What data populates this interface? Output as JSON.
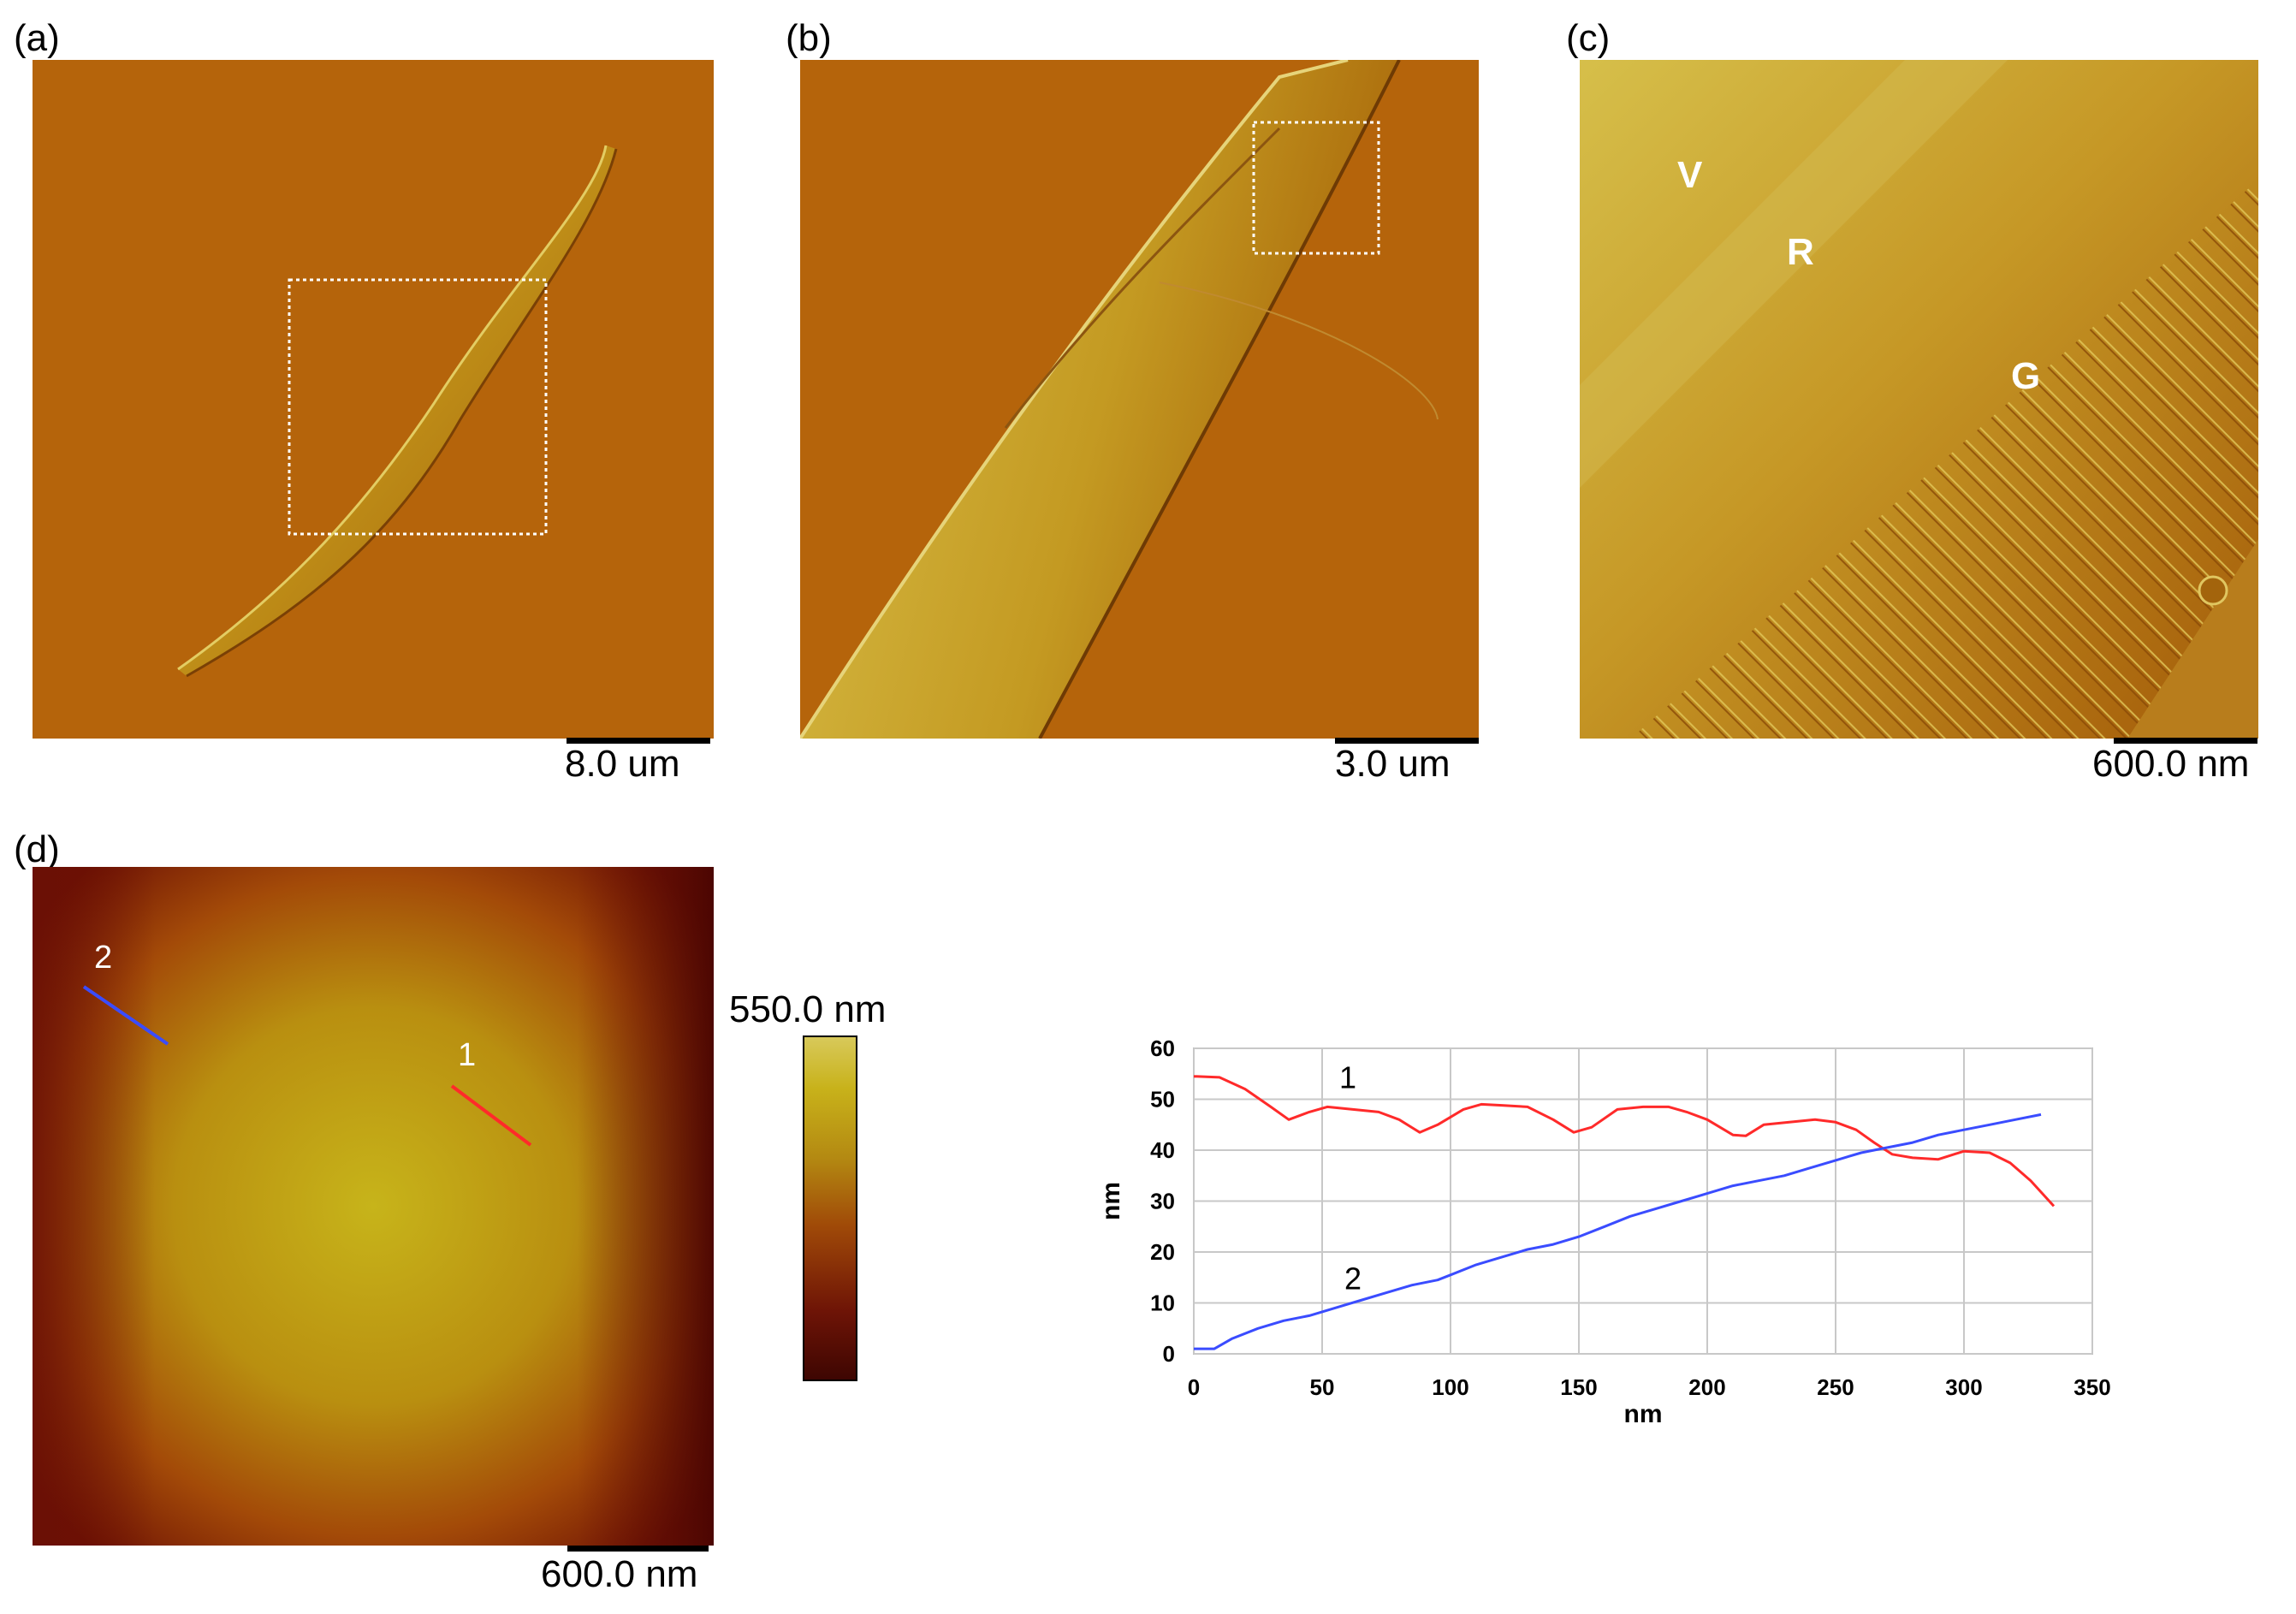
{
  "panels": {
    "a": {
      "label": "(a)",
      "scale": "8.0 um"
    },
    "b": {
      "label": "(b)",
      "scale": "3.0 um"
    },
    "c": {
      "label": "(c)",
      "scale": "600.0 nm",
      "regions": [
        "V",
        "R",
        "G"
      ]
    },
    "d": {
      "label": "(d)",
      "scale": "600.0 nm",
      "colorbar_max": "550.0 nm",
      "profile_lines": [
        "1",
        "2"
      ]
    }
  },
  "colors": {
    "background_afm": "#b5640b",
    "cell_light": "#c7a21e",
    "profile1": "#ff2a2a",
    "profile2": "#3a4cff"
  },
  "chart_data": {
    "type": "line",
    "title": "",
    "xlabel": "nm",
    "ylabel": "nm",
    "xlim": [
      0,
      350
    ],
    "ylim": [
      0,
      60
    ],
    "xticks": [
      0,
      50,
      100,
      150,
      200,
      250,
      300,
      350
    ],
    "yticks": [
      0,
      10,
      20,
      30,
      40,
      50,
      60
    ],
    "grid": true,
    "series": [
      {
        "name": "1",
        "color": "#ff2a2a",
        "x": [
          0,
          10,
          20,
          30,
          37,
          45,
          52,
          62,
          72,
          80,
          88,
          95,
          105,
          112,
          120,
          130,
          140,
          148,
          155,
          165,
          175,
          185,
          192,
          200,
          210,
          215,
          222,
          232,
          242,
          250,
          258,
          265,
          272,
          280,
          290,
          300,
          310,
          318,
          326,
          335
        ],
        "values": [
          54.5,
          54.3,
          52,
          48.5,
          46,
          47.5,
          48.5,
          48,
          47.5,
          46,
          43.5,
          45,
          48,
          49,
          48.8,
          48.5,
          46,
          43.5,
          44.5,
          48,
          48.5,
          48.5,
          47.5,
          46,
          43,
          42.8,
          45,
          45.5,
          46,
          45.5,
          44,
          41.5,
          39.2,
          38.5,
          38.2,
          39.8,
          39.5,
          37.5,
          34,
          29
        ]
      },
      {
        "name": "2",
        "color": "#3a4cff",
        "x": [
          0,
          8,
          15,
          25,
          35,
          45,
          55,
          65,
          75,
          85,
          95,
          100,
          110,
          120,
          130,
          140,
          150,
          160,
          170,
          180,
          190,
          200,
          210,
          220,
          230,
          240,
          250,
          260,
          270,
          280,
          290,
          300,
          310,
          320,
          330
        ],
        "values": [
          1,
          1,
          3,
          5,
          6.5,
          7.5,
          9,
          10.5,
          12,
          13.5,
          14.5,
          15.5,
          17.5,
          19,
          20.5,
          21.5,
          23,
          25,
          27,
          28.5,
          30,
          31.5,
          33,
          34,
          35,
          36.5,
          38,
          39.5,
          40.5,
          41.5,
          43,
          44,
          45,
          46,
          47
        ]
      }
    ]
  }
}
